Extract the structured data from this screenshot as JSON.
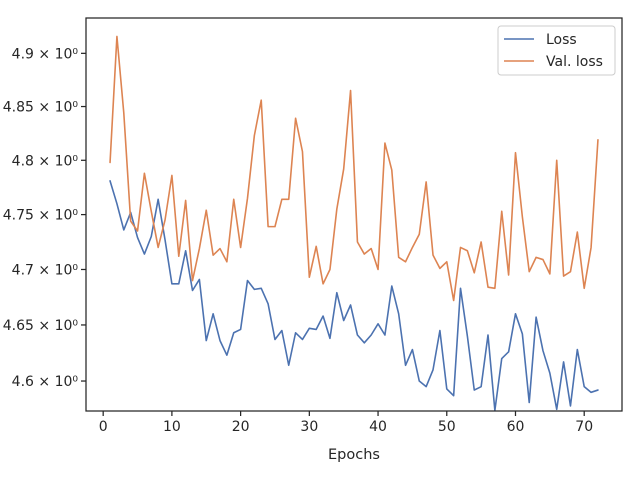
{
  "chart_data": {
    "type": "line",
    "xlabel": "Epochs",
    "ylabel": "",
    "xlim": [
      -2.5,
      75.5
    ],
    "ylim": [
      4.5735,
      4.9335
    ],
    "x_ticks": [
      0,
      10,
      20,
      30,
      40,
      50,
      60,
      70
    ],
    "y_ticks": [
      4.6,
      4.65,
      4.7,
      4.75,
      4.8,
      4.85,
      4.9
    ],
    "y_tick_labels": [
      "4.6 × 10⁰",
      "4.65 × 10⁰",
      "4.7 × 10⁰",
      "4.75 × 10⁰",
      "4.8 × 10⁰",
      "4.85 × 10⁰",
      "4.9 × 10⁰"
    ],
    "y_scale": "log",
    "grid": false,
    "legend_position": "top-right",
    "x": [
      1,
      2,
      3,
      4,
      5,
      6,
      7,
      8,
      9,
      10,
      11,
      12,
      13,
      14,
      15,
      16,
      17,
      18,
      19,
      20,
      21,
      22,
      23,
      24,
      25,
      26,
      27,
      28,
      29,
      30,
      31,
      32,
      33,
      34,
      35,
      36,
      37,
      38,
      39,
      40,
      41,
      42,
      43,
      44,
      45,
      46,
      47,
      48,
      49,
      50,
      51,
      52,
      53,
      54,
      55,
      56,
      57,
      58,
      59,
      60,
      61,
      62,
      63,
      64,
      65,
      66,
      67,
      68,
      69,
      70,
      71,
      72
    ],
    "series": [
      {
        "name": "Loss",
        "color": "#4c72b0",
        "values": [
          4.781,
          4.76,
          4.736,
          4.752,
          4.729,
          4.714,
          4.73,
          4.764,
          4.727,
          4.687,
          4.687,
          4.717,
          4.681,
          4.691,
          4.636,
          4.66,
          4.636,
          4.623,
          4.643,
          4.646,
          4.69,
          4.682,
          4.683,
          4.669,
          4.637,
          4.645,
          4.614,
          4.643,
          4.637,
          4.647,
          4.646,
          4.658,
          4.638,
          4.679,
          4.654,
          4.668,
          4.641,
          4.634,
          4.641,
          4.651,
          4.641,
          4.685,
          4.66,
          4.614,
          4.628,
          4.6,
          4.595,
          4.61,
          4.645,
          4.593,
          4.587,
          4.683,
          4.64,
          4.592,
          4.595,
          4.641,
          4.574,
          4.62,
          4.626,
          4.66,
          4.642,
          4.581,
          4.657,
          4.627,
          4.607,
          4.575,
          4.617,
          4.578,
          4.628,
          4.595,
          4.59,
          4.592
        ]
      },
      {
        "name": "Val. loss",
        "color": "#dd8452",
        "values": [
          4.798,
          4.916,
          4.844,
          4.744,
          4.735,
          4.788,
          4.753,
          4.72,
          4.745,
          4.786,
          4.712,
          4.763,
          4.69,
          4.719,
          4.754,
          4.713,
          4.719,
          4.707,
          4.764,
          4.72,
          4.765,
          4.823,
          4.856,
          4.739,
          4.739,
          4.764,
          4.764,
          4.839,
          4.808,
          4.693,
          4.721,
          4.687,
          4.7,
          4.755,
          4.792,
          4.865,
          4.725,
          4.714,
          4.719,
          4.7,
          4.816,
          4.791,
          4.711,
          4.707,
          4.72,
          4.732,
          4.78,
          4.713,
          4.701,
          4.707,
          4.672,
          4.72,
          4.717,
          4.697,
          4.725,
          4.684,
          4.683,
          4.753,
          4.695,
          4.807,
          4.748,
          4.698,
          4.711,
          4.709,
          4.696,
          4.8,
          4.694,
          4.698,
          4.734,
          4.683,
          4.72,
          4.819
        ]
      }
    ]
  }
}
